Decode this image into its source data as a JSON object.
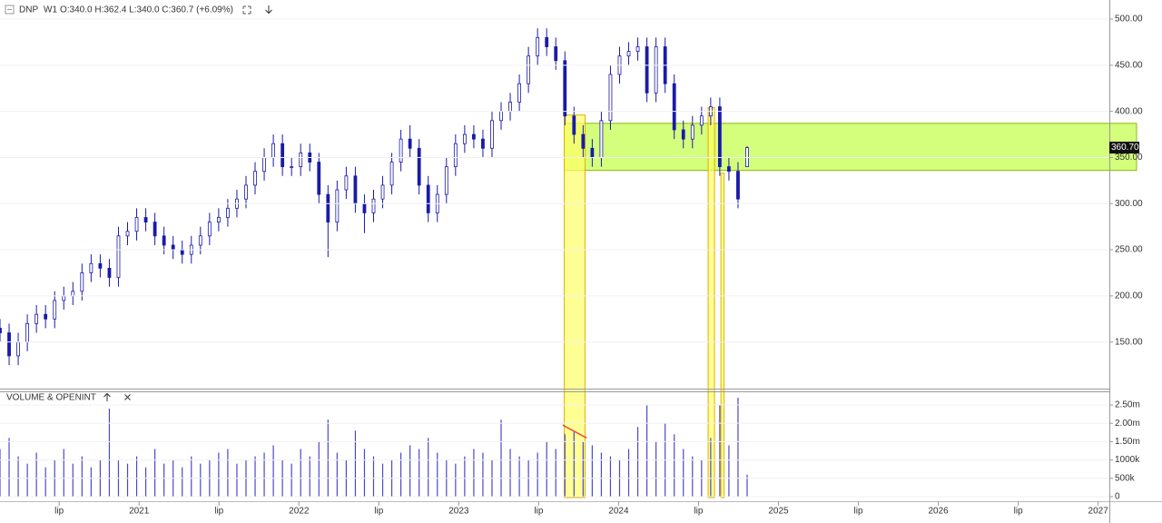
{
  "header": {
    "symbol": "DNP",
    "timeframe": "W1",
    "ohlc_text": "O:340.0 H:362.4 L:340.0 C:360.7 (+6.09%)"
  },
  "chart_data": [
    {
      "type": "candlestick",
      "x": [
        2020.13,
        2020.187,
        2020.244,
        2020.301,
        2020.358,
        2020.415,
        2020.472,
        2020.529,
        2020.586,
        2020.643,
        2020.7,
        2020.757,
        2020.814,
        2020.871,
        2020.928,
        2020.985,
        2021.042,
        2021.099,
        2021.156,
        2021.213,
        2021.27,
        2021.327,
        2021.384,
        2021.441,
        2021.498,
        2021.555,
        2021.612,
        2021.669,
        2021.726,
        2021.783,
        2021.84,
        2021.897,
        2021.954,
        2022.011,
        2022.068,
        2022.125,
        2022.182,
        2022.239,
        2022.296,
        2022.353,
        2022.41,
        2022.467,
        2022.524,
        2022.581,
        2022.638,
        2022.695,
        2022.752,
        2022.809,
        2022.866,
        2022.923,
        2022.98,
        2023.037,
        2023.094,
        2023.151,
        2023.208,
        2023.265,
        2023.322,
        2023.379,
        2023.436,
        2023.493,
        2023.55,
        2023.607,
        2023.664,
        2023.721,
        2023.778,
        2023.835,
        2023.892,
        2023.949,
        2024.006,
        2024.063,
        2024.12,
        2024.177,
        2024.234,
        2024.291,
        2024.348,
        2024.405,
        2024.462,
        2024.519,
        2024.576,
        2024.633,
        2024.69,
        2024.747,
        2024.804
      ],
      "open": [
        165,
        160,
        135,
        150,
        170,
        180,
        175,
        195,
        200,
        205,
        225,
        235,
        230,
        220,
        265,
        270,
        285,
        280,
        265,
        255,
        250,
        245,
        255,
        265,
        280,
        285,
        295,
        305,
        320,
        335,
        350,
        365,
        340,
        340,
        355,
        345,
        310,
        280,
        315,
        330,
        300,
        290,
        305,
        320,
        345,
        370,
        360,
        320,
        290,
        310,
        340,
        365,
        375,
        370,
        360,
        390,
        400,
        410,
        430,
        460,
        480,
        470,
        455,
        395,
        375,
        360,
        350,
        390,
        440,
        460,
        465,
        470,
        420,
        470,
        430,
        380,
        370,
        385,
        395,
        405,
        340,
        335,
        340
      ],
      "high": [
        175,
        170,
        160,
        180,
        190,
        190,
        205,
        210,
        215,
        235,
        245,
        245,
        240,
        275,
        280,
        295,
        295,
        290,
        275,
        265,
        260,
        265,
        275,
        290,
        295,
        305,
        315,
        330,
        345,
        360,
        375,
        375,
        350,
        365,
        365,
        355,
        320,
        325,
        340,
        340,
        310,
        315,
        330,
        355,
        380,
        385,
        370,
        330,
        320,
        350,
        375,
        385,
        385,
        380,
        400,
        410,
        420,
        440,
        470,
        490,
        490,
        480,
        465,
        405,
        385,
        370,
        400,
        450,
        470,
        475,
        480,
        480,
        480,
        480,
        440,
        390,
        395,
        405,
        415,
        415,
        350,
        345,
        362.4
      ],
      "low": [
        150,
        125,
        125,
        140,
        160,
        165,
        165,
        185,
        190,
        195,
        215,
        220,
        210,
        210,
        255,
        260,
        270,
        255,
        245,
        240,
        235,
        235,
        245,
        255,
        270,
        275,
        285,
        295,
        310,
        325,
        340,
        330,
        330,
        330,
        335,
        300,
        242,
        270,
        305,
        290,
        268,
        280,
        295,
        310,
        335,
        350,
        310,
        280,
        280,
        300,
        330,
        355,
        360,
        350,
        350,
        380,
        390,
        400,
        420,
        450,
        460,
        445,
        385,
        365,
        350,
        340,
        340,
        380,
        430,
        450,
        455,
        410,
        410,
        420,
        370,
        360,
        360,
        375,
        385,
        330,
        325,
        295,
        340
      ],
      "close": [
        160,
        135,
        150,
        170,
        180,
        175,
        195,
        200,
        205,
        225,
        235,
        230,
        220,
        265,
        270,
        285,
        280,
        265,
        255,
        250,
        245,
        255,
        265,
        280,
        285,
        295,
        305,
        320,
        335,
        350,
        365,
        340,
        340,
        355,
        345,
        310,
        280,
        315,
        330,
        300,
        290,
        305,
        320,
        345,
        370,
        360,
        320,
        290,
        310,
        340,
        365,
        375,
        370,
        360,
        390,
        400,
        410,
        430,
        460,
        480,
        470,
        455,
        395,
        375,
        360,
        350,
        390,
        440,
        460,
        465,
        470,
        420,
        470,
        430,
        380,
        370,
        385,
        395,
        405,
        340,
        335,
        305,
        360.7
      ],
      "color": "#1a1aa8",
      "xlim": [
        2020.13,
        2027.07
      ],
      "xticks": [
        {
          "value": 2020.5,
          "label": "lip"
        },
        2021,
        {
          "value": 2021.5,
          "label": "lip"
        },
        2022,
        {
          "value": 2022.5,
          "label": "lip"
        },
        2023,
        {
          "value": 2023.5,
          "label": "lip"
        },
        2024,
        {
          "value": 2024.5,
          "label": "lip"
        },
        2025,
        {
          "value": 2025.5,
          "label": "lip"
        },
        2026,
        {
          "value": 2026.5,
          "label": "lip"
        },
        2027
      ],
      "ylim": [
        99.5,
        520.7
      ],
      "yticks": [
        {
          "value": 150,
          "label": "150.00"
        },
        {
          "value": 200,
          "label": "200.00"
        },
        {
          "value": 250,
          "label": "250.00"
        },
        {
          "value": 300,
          "label": "300.00"
        },
        {
          "value": 350,
          "label": "350.00"
        },
        {
          "value": 400,
          "label": "400.00"
        },
        {
          "value": 450,
          "label": "450.00"
        },
        {
          "value": 500,
          "label": "500.00"
        }
      ],
      "last_price": {
        "value": 360.7,
        "label": "360.70"
      },
      "zones": [
        {
          "x": [
            2023.66,
            2027.24
          ],
          "y": [
            336,
            387
          ],
          "color": "#ccff66"
        }
      ],
      "highlights": [
        {
          "x": [
            2023.66,
            2023.79
          ],
          "top": 396,
          "color": "#ffff66"
        },
        {
          "x": [
            2024.56,
            2024.6
          ],
          "top": 404,
          "color": "#ffff66"
        },
        {
          "x": [
            2024.64,
            2024.66
          ],
          "top": 333,
          "color": "#ffff66"
        }
      ]
    },
    {
      "type": "bar",
      "title": "VOLUME & OPENINT",
      "values": [
        1300000,
        1600000,
        1100000,
        900000,
        1200000,
        800000,
        1000000,
        1300000,
        900000,
        1100000,
        800000,
        1000000,
        2400000,
        1000000,
        900000,
        1100000,
        800000,
        1300000,
        900000,
        1000000,
        800000,
        1100000,
        900000,
        1000000,
        1200000,
        1300000,
        900000,
        1000000,
        1100000,
        1200000,
        1400000,
        1000000,
        900000,
        1300000,
        1100000,
        1500000,
        2100000,
        1200000,
        1000000,
        1800000,
        1300000,
        1100000,
        900000,
        1000000,
        1200000,
        1400000,
        1300000,
        1600000,
        1200000,
        1000000,
        900000,
        1100000,
        1300000,
        1200000,
        1000000,
        2100000,
        1300000,
        1100000,
        1000000,
        1200000,
        1500000,
        1300000,
        1700000,
        1800000,
        1500000,
        1400000,
        1200000,
        1100000,
        1000000,
        1300000,
        1900000,
        2500000,
        1500000,
        2000000,
        1700000,
        1300000,
        1100000,
        1000000,
        1600000,
        2500000,
        1400000,
        2700000,
        600000
      ],
      "color": "#4a4ac8",
      "ylim": [
        0,
        2846000
      ],
      "yticks": [
        0,
        {
          "value": 500000,
          "label": "500k"
        },
        {
          "value": 1000000,
          "label": "1000k"
        },
        {
          "value": 1500000,
          "label": "1.50m"
        },
        {
          "value": 2000000,
          "label": "2.00m"
        },
        {
          "value": 2500000,
          "label": "2.50m"
        }
      ],
      "trendline": {
        "x": [
          2023.65,
          2023.8
        ],
        "y": [
          1950000,
          1600000
        ],
        "color": "#e05050"
      }
    }
  ]
}
